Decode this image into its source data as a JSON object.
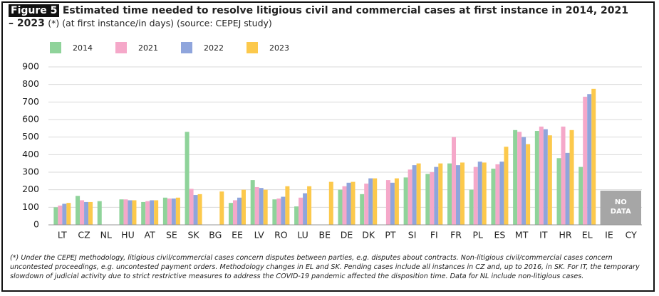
{
  "chart_data": {
    "type": "bar",
    "figure_label": "Figure 5",
    "title": "Estimated time needed to resolve litigious civil and commercial cases at first instance in 2014, 2021 – 2023",
    "subtitle": "(*) (at first instance/in days) (source: CEPEJ study)",
    "categories": [
      "LT",
      "CZ",
      "NL",
      "HU",
      "AT",
      "SE",
      "SK",
      "BG",
      "EE",
      "LV",
      "RO",
      "LU",
      "BE",
      "DE",
      "DK",
      "PT",
      "SI",
      "FI",
      "FR",
      "PL",
      "ES",
      "MT",
      "IT",
      "HR",
      "EL",
      "IE",
      "CY"
    ],
    "series": [
      {
        "name": "2014",
        "color": "#8fd39a",
        "values": [
          100,
          165,
          135,
          145,
          130,
          155,
          530,
          null,
          125,
          255,
          145,
          105,
          null,
          200,
          175,
          null,
          270,
          290,
          350,
          200,
          320,
          540,
          535,
          380,
          330,
          null,
          null
        ]
      },
      {
        "name": "2021",
        "color": "#f5a8c9",
        "values": [
          110,
          140,
          null,
          145,
          135,
          150,
          205,
          null,
          140,
          215,
          150,
          155,
          null,
          220,
          235,
          255,
          315,
          300,
          500,
          330,
          345,
          530,
          560,
          560,
          730,
          null,
          null
        ]
      },
      {
        "name": "2022",
        "color": "#8fa5dc",
        "values": [
          120,
          130,
          null,
          140,
          140,
          150,
          170,
          null,
          155,
          210,
          160,
          180,
          null,
          240,
          265,
          240,
          340,
          330,
          340,
          360,
          360,
          500,
          545,
          410,
          745,
          null,
          null
        ]
      },
      {
        "name": "2023",
        "color": "#fcc94c",
        "values": [
          125,
          130,
          null,
          140,
          140,
          155,
          175,
          190,
          200,
          200,
          220,
          220,
          245,
          245,
          265,
          265,
          350,
          350,
          355,
          355,
          445,
          460,
          510,
          540,
          775,
          null,
          null
        ]
      }
    ],
    "ylim": [
      0,
      900
    ],
    "yticks": [
      0,
      100,
      200,
      300,
      400,
      500,
      600,
      700,
      800,
      900
    ],
    "grid": true,
    "no_data_label": "NO DATA",
    "footnote": "(*) Under the CEPEJ methodology, litigious civil/commercial cases concern disputes between parties, e.g. disputes about contracts. Non-litigious civil/commercial cases concern uncontested proceedings, e.g. uncontested payment orders. Methodology changes in EL and SK. Pending cases include all instances in CZ and, up to 2016, in SK. For IT, the temporary slowdown of judicial activity due to strict restrictive measures to address the COVID-19 pandemic affected the disposition time. Data for NL include non-litigious cases."
  }
}
